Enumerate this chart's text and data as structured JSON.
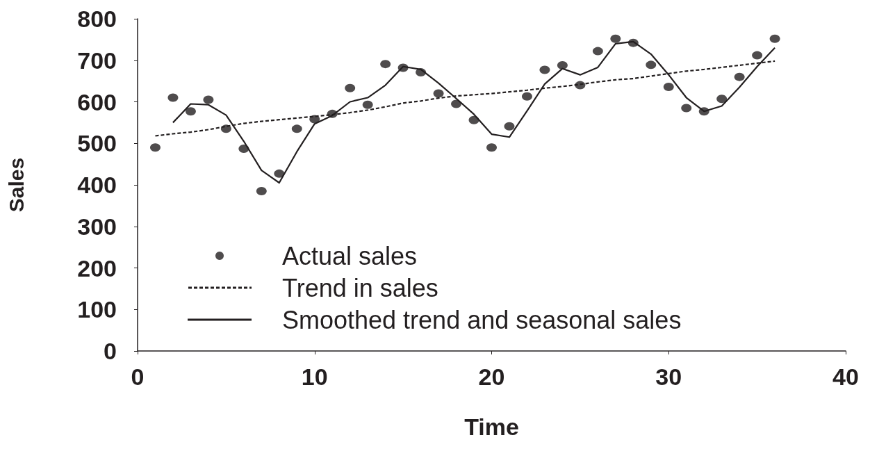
{
  "chart_data": {
    "type": "scatter",
    "xlabel": "Time",
    "ylabel": "Sales",
    "xlim": [
      0,
      40
    ],
    "xticks": [
      0,
      10,
      20,
      30,
      40
    ],
    "ylim": [
      0,
      800
    ],
    "yticks": [
      0,
      100,
      200,
      300,
      400,
      500,
      600,
      700,
      800
    ],
    "grid": false,
    "legend": "bottom",
    "series": [
      {
        "name": "Actual sales",
        "marker": "circle",
        "color": "#231f20",
        "x": [
          1,
          2,
          3,
          4,
          5,
          6,
          7,
          8,
          9,
          10,
          11,
          12,
          13,
          14,
          15,
          16,
          17,
          18,
          19,
          20,
          21,
          22,
          23,
          24,
          25,
          26,
          27,
          28,
          29,
          30,
          31,
          32,
          33,
          34,
          35,
          36
        ],
        "values": [
          490,
          610,
          577,
          605,
          535,
          487,
          385,
          427,
          535,
          558,
          571,
          633,
          593,
          691,
          682,
          671,
          620,
          595,
          556,
          490,
          541,
          613,
          677,
          688,
          640,
          722,
          752,
          742,
          689,
          636,
          585,
          577,
          607,
          660,
          712,
          752
        ]
      },
      {
        "name": "Trend in sales",
        "type": "line",
        "marker": "none",
        "line_style": "dashed",
        "color": "#231f20",
        "x": [
          1,
          2,
          3,
          4,
          5,
          6,
          7,
          8,
          9,
          10,
          11,
          12,
          13,
          14,
          15,
          16,
          17,
          18,
          19,
          20,
          21,
          22,
          23,
          24,
          25,
          26,
          27,
          28,
          29,
          30,
          31,
          32,
          33,
          34,
          35,
          36
        ],
        "values": [
          518,
          523,
          527,
          533,
          541,
          548,
          553,
          557,
          561,
          565,
          569,
          574,
          580,
          588,
          597,
          602,
          609,
          614,
          617,
          620,
          624,
          628,
          633,
          637,
          642,
          648,
          653,
          656,
          662,
          668,
          674,
          678,
          683,
          688,
          693,
          698
        ]
      },
      {
        "name": "Smoothed trend and seasonal sales",
        "type": "line",
        "marker": "none",
        "line_style": "solid",
        "color": "#231f20",
        "x": [
          2,
          3,
          4,
          5,
          6,
          7,
          8,
          9,
          10,
          11,
          12,
          13,
          14,
          15,
          16,
          17,
          18,
          19,
          20,
          21,
          22,
          23,
          24,
          25,
          26,
          27,
          28,
          29,
          30,
          31,
          32,
          33,
          34,
          35,
          36
        ],
        "values": [
          550,
          595,
          593,
          568,
          505,
          435,
          405,
          480,
          547,
          567,
          600,
          610,
          640,
          685,
          678,
          645,
          608,
          570,
          522,
          515,
          578,
          643,
          680,
          665,
          683,
          740,
          745,
          715,
          665,
          610,
          577,
          590,
          635,
          685,
          730
        ]
      }
    ]
  }
}
